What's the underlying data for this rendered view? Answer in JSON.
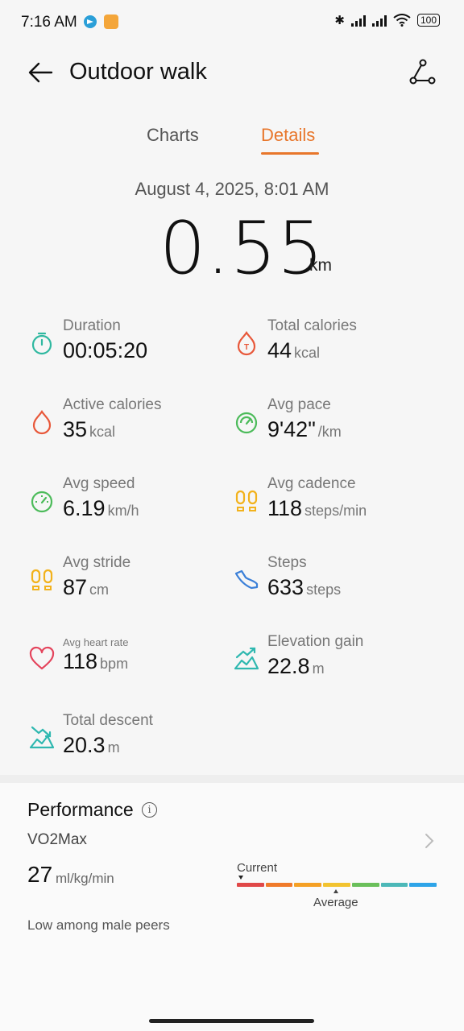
{
  "status_bar": {
    "time": "7:16 AM",
    "battery": "100"
  },
  "header": {
    "title": "Outdoor walk"
  },
  "tabs": [
    {
      "label": "Charts"
    },
    {
      "label": "Details"
    }
  ],
  "summary": {
    "date": "August 4, 2025, 8:01 AM",
    "distance": "0.55",
    "distance_unit": "km"
  },
  "metrics": [
    {
      "label": "Duration",
      "value": "00:05:20",
      "unit": ""
    },
    {
      "label": "Total calories",
      "value": "44",
      "unit": "kcal"
    },
    {
      "label": "Active calories",
      "value": "35",
      "unit": "kcal"
    },
    {
      "label": "Avg pace",
      "value": "9'42\"",
      "unit": "/km"
    },
    {
      "label": "Avg speed",
      "value": "6.19",
      "unit": "km/h"
    },
    {
      "label": "Avg cadence",
      "value": "118",
      "unit": "steps/min"
    },
    {
      "label": "Avg stride",
      "value": "87",
      "unit": "cm"
    },
    {
      "label": "Steps",
      "value": "633",
      "unit": "steps"
    },
    {
      "label": "Avg heart rate",
      "value": "118",
      "unit": "bpm"
    },
    {
      "label": "Elevation gain",
      "value": "22.8",
      "unit": "m"
    },
    {
      "label": "Total descent",
      "value": "20.3",
      "unit": "m"
    }
  ],
  "performance": {
    "title": "Performance",
    "metric": "VO2Max",
    "value": "27",
    "unit": "ml/kg/min",
    "current_label": "Current",
    "average_label": "Average",
    "note": "Low among male peers",
    "scale_colors": [
      "#e04848",
      "#f07a2a",
      "#f5a024",
      "#f2c330",
      "#6abf5a",
      "#4cb8b8",
      "#2ea4e8"
    ]
  },
  "colors": {
    "accent": "#e8762b"
  }
}
